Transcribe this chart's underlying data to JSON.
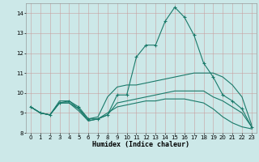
{
  "xlabel": "Humidex (Indice chaleur)",
  "xlim": [
    -0.5,
    23.5
  ],
  "ylim": [
    8,
    14.5
  ],
  "yticks": [
    8,
    9,
    10,
    11,
    12,
    13,
    14
  ],
  "xticks": [
    0,
    1,
    2,
    3,
    4,
    5,
    6,
    7,
    8,
    9,
    10,
    11,
    12,
    13,
    14,
    15,
    16,
    17,
    18,
    19,
    20,
    21,
    22,
    23
  ],
  "bg_color": "#cce8e8",
  "grid_color": "#aacfcf",
  "line_color": "#1a7a6a",
  "lines": [
    {
      "x": [
        0,
        1,
        2,
        3,
        4,
        5,
        6,
        7,
        8,
        9,
        10,
        11,
        12,
        13,
        14,
        15,
        16,
        17,
        18,
        19,
        20,
        21,
        22,
        23
      ],
      "y": [
        9.3,
        9.0,
        8.9,
        9.5,
        9.6,
        9.3,
        8.7,
        8.7,
        8.9,
        9.9,
        9.9,
        11.8,
        12.4,
        12.4,
        13.6,
        14.3,
        13.8,
        12.9,
        11.5,
        10.8,
        9.9,
        9.6,
        9.2,
        8.3
      ],
      "marker": "+"
    },
    {
      "x": [
        0,
        1,
        2,
        3,
        4,
        5,
        6,
        7,
        8,
        9,
        10,
        11,
        12,
        13,
        14,
        15,
        16,
        17,
        18,
        19,
        20,
        21,
        22,
        23
      ],
      "y": [
        9.3,
        9.0,
        8.9,
        9.6,
        9.6,
        9.2,
        8.7,
        8.8,
        9.8,
        10.3,
        10.4,
        10.4,
        10.5,
        10.6,
        10.7,
        10.8,
        10.9,
        11.0,
        11.0,
        11.0,
        10.8,
        10.4,
        9.8,
        8.4
      ],
      "marker": null
    },
    {
      "x": [
        0,
        1,
        2,
        3,
        4,
        5,
        6,
        7,
        8,
        9,
        10,
        11,
        12,
        13,
        14,
        15,
        16,
        17,
        18,
        19,
        20,
        21,
        22,
        23
      ],
      "y": [
        9.3,
        9.0,
        8.9,
        9.5,
        9.5,
        9.2,
        8.6,
        8.7,
        8.9,
        9.5,
        9.6,
        9.7,
        9.8,
        9.9,
        10.0,
        10.1,
        10.1,
        10.1,
        10.1,
        9.8,
        9.6,
        9.3,
        9.0,
        8.3
      ],
      "marker": null
    },
    {
      "x": [
        0,
        1,
        2,
        3,
        4,
        5,
        6,
        7,
        8,
        9,
        10,
        11,
        12,
        13,
        14,
        15,
        16,
        17,
        18,
        19,
        20,
        21,
        22,
        23
      ],
      "y": [
        9.3,
        9.0,
        8.9,
        9.5,
        9.5,
        9.1,
        8.6,
        8.7,
        9.0,
        9.3,
        9.4,
        9.5,
        9.6,
        9.6,
        9.7,
        9.7,
        9.7,
        9.6,
        9.5,
        9.2,
        8.8,
        8.5,
        8.3,
        8.2
      ],
      "marker": null
    }
  ]
}
